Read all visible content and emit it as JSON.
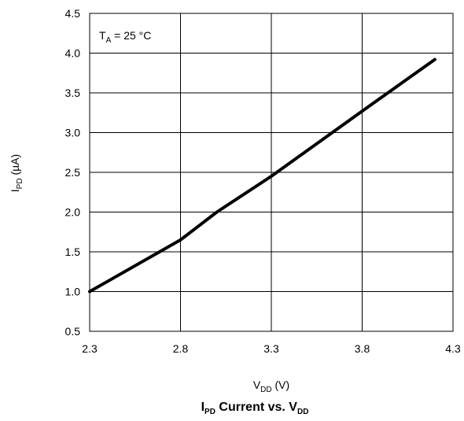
{
  "chart_data": {
    "type": "line",
    "title": {
      "main": "I",
      "sub1": "PD",
      "mid": " Current vs. V",
      "sub2": "DD"
    },
    "xlabel": {
      "main": "V",
      "sub": "DD",
      "unit": " (V)"
    },
    "ylabel": {
      "main": "I",
      "sub": "PD",
      "unit": " (µA)"
    },
    "annotation": {
      "main": "T",
      "sub": "A",
      "rest": " = 25 °C"
    },
    "xlim": [
      2.3,
      4.3
    ],
    "ylim": [
      0.5,
      4.5
    ],
    "x_ticks": [
      "2.3",
      "2.8",
      "3.3",
      "3.8",
      "4.3"
    ],
    "y_ticks": [
      "0.5",
      "1.0",
      "1.5",
      "2.0",
      "2.5",
      "3.0",
      "3.5",
      "4.0",
      "4.5"
    ],
    "grid": true,
    "line_color": "#000000",
    "series": [
      {
        "x": [
          2.3,
          2.8,
          3.0,
          3.3,
          3.8,
          4.2
        ],
        "y": [
          1.0,
          1.65,
          2.0,
          2.45,
          3.27,
          3.92
        ]
      }
    ]
  }
}
